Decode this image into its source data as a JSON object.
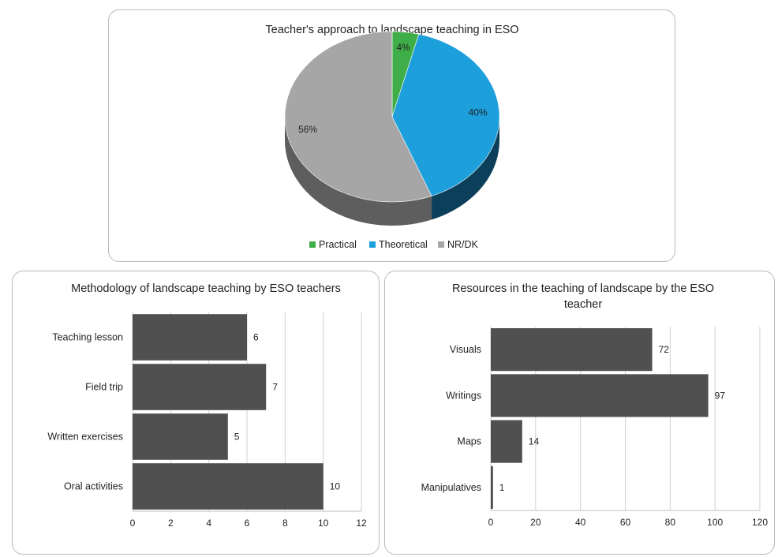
{
  "chart_data": [
    {
      "type": "pie",
      "title": "Teacher's approach to landscape teaching in ESO",
      "categories": [
        "Practical",
        "Theoretical",
        "NR/DK"
      ],
      "values": [
        4,
        40,
        56
      ],
      "labels": [
        "4%",
        "40%",
        "56%"
      ],
      "colors": [
        "#3fae49",
        "#1d9fdb",
        "#a6a6a6"
      ],
      "side_colors": [
        "#2a7a31",
        "#0b3f5a",
        "#5e5e5e"
      ],
      "legend": "bottom"
    },
    {
      "type": "bar",
      "orientation": "horizontal",
      "title": "Methodology of landscape teaching by ESO teachers",
      "categories": [
        "Teaching lesson",
        "Field trip",
        "Written exercises",
        "Oral activities"
      ],
      "values": [
        6,
        7,
        5,
        10
      ],
      "xlim": [
        0,
        12
      ],
      "xticks": [
        "0",
        "2",
        "4",
        "6",
        "8",
        "10",
        "12"
      ],
      "grid": true,
      "color": "#505050"
    },
    {
      "type": "bar",
      "orientation": "horizontal",
      "title": "Resources in the teaching of landscape by the ESO teacher",
      "title_lines": [
        "Resources in the teaching of landscape by the ESO",
        "teacher"
      ],
      "categories": [
        "Visuals",
        "Writings",
        "Maps",
        "Manipulatives"
      ],
      "values": [
        72,
        97,
        14,
        1
      ],
      "xlim": [
        0,
        120
      ],
      "xticks": [
        "0",
        "20",
        "40",
        "60",
        "80",
        "100",
        "120"
      ],
      "grid": true,
      "color": "#505050"
    }
  ]
}
